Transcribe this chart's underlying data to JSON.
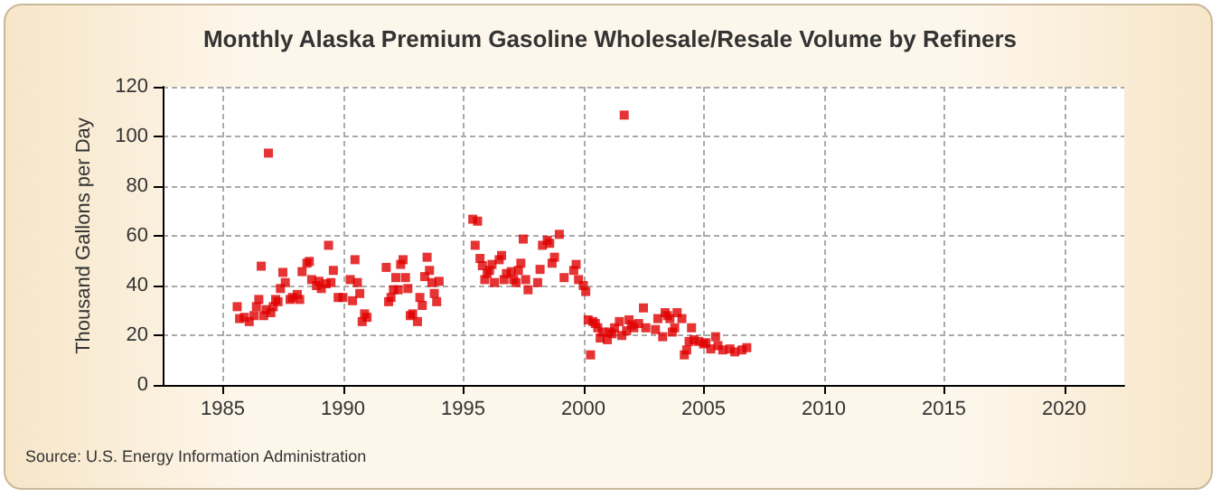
{
  "chart_data": {
    "type": "scatter",
    "title": "Monthly Alaska Premium Gasoline Wholesale/Resale Volume by Refiners",
    "ylabel": "Thousand Gallons per Day",
    "annotations": [
      "Source: U.S. Energy Information Administration"
    ],
    "x": [
      1985.6,
      1985.7,
      1985.9,
      1986.1,
      1986.3,
      1986.4,
      1986.5,
      1986.6,
      1986.7,
      1986.8,
      1986.9,
      1987.0,
      1987.1,
      1987.2,
      1987.3,
      1987.5,
      1987.4,
      1987.6,
      1987.8,
      1987.9,
      1988.1,
      1988.2,
      1988.3,
      1988.5,
      1988.6,
      1988.7,
      1988.9,
      1989.0,
      1989.1,
      1989.3,
      1989.4,
      1989.5,
      1989.6,
      1989.8,
      1990.0,
      1990.3,
      1990.4,
      1990.5,
      1990.6,
      1990.7,
      1990.8,
      1990.9,
      1991.0,
      1991.8,
      1991.9,
      1992.0,
      1992.1,
      1992.2,
      1992.3,
      1992.4,
      1992.5,
      1992.6,
      1992.7,
      1992.8,
      1992.9,
      1993.1,
      1993.2,
      1993.3,
      1993.4,
      1993.5,
      1993.6,
      1993.7,
      1993.8,
      1993.9,
      1994.0,
      1995.4,
      1995.5,
      1995.6,
      1995.7,
      1995.8,
      1995.9,
      1996.0,
      1996.1,
      1996.2,
      1996.3,
      1996.5,
      1996.6,
      1996.7,
      1996.8,
      1997.0,
      1997.1,
      1997.2,
      1997.3,
      1997.4,
      1997.5,
      1997.6,
      1997.7,
      1998.1,
      1998.2,
      1998.3,
      1998.5,
      1998.6,
      1998.7,
      1998.8,
      1999.0,
      1999.2,
      1999.6,
      1999.7,
      1999.8,
      2000.0,
      2000.1,
      2000.2,
      2000.3,
      2000.4,
      2000.5,
      2000.6,
      2000.7,
      2000.8,
      2001.0,
      2001.1,
      2001.2,
      2001.3,
      2001.5,
      2001.6,
      2001.7,
      2001.8,
      2001.9,
      2002.0,
      2002.1,
      2002.3,
      2002.5,
      2002.6,
      2003.0,
      2003.1,
      2003.3,
      2003.4,
      2003.5,
      2003.6,
      2003.7,
      2003.8,
      2003.9,
      2004.1,
      2004.2,
      2004.3,
      2004.4,
      2004.5,
      2004.6,
      2004.8,
      2005.0,
      2005.1,
      2005.3,
      2005.5,
      2005.6,
      2005.8,
      2006.1,
      2006.3,
      2006.6,
      2006.8
    ],
    "values": [
      31.5,
      26.7,
      27.2,
      25.5,
      27.9,
      31.5,
      34.4,
      47.8,
      27.9,
      30.3,
      93.3,
      29.1,
      31.5,
      34.4,
      33.5,
      45.3,
      38.8,
      41.2,
      34.4,
      35.2,
      36.4,
      34.4,
      45.6,
      49,
      49.7,
      42.4,
      40,
      41.7,
      38.8,
      40.7,
      56.2,
      41.2,
      46.1,
      35.2,
      35.2,
      42.4,
      33.9,
      50.4,
      41.2,
      36.8,
      25.5,
      28.6,
      27.2,
      47.3,
      33.5,
      35.2,
      38.3,
      43.2,
      38.3,
      48.5,
      50.4,
      43.2,
      38.8,
      27.9,
      28.6,
      25.5,
      35.2,
      32,
      43.6,
      51.4,
      46.1,
      41.2,
      36.8,
      33.5,
      41.7,
      66.7,
      56.2,
      65.9,
      50.9,
      48,
      42.4,
      44.8,
      46.1,
      48.5,
      41.2,
      50.4,
      52.1,
      42.4,
      44.8,
      45.6,
      42.4,
      41.2,
      46.1,
      49,
      58.7,
      42.4,
      38.3,
      41.2,
      46.5,
      56.2,
      58.2,
      57,
      49,
      51.4,
      60.6,
      43.2,
      46.1,
      48.5,
      42.4,
      40,
      37.6,
      26.2,
      12.1,
      25.5,
      24.7,
      23,
      18.9,
      21.3,
      18.2,
      21.3,
      20.6,
      23,
      25.5,
      19.9,
      108.6,
      21.8,
      26.2,
      24.2,
      23,
      24.7,
      31,
      23,
      22.3,
      26.7,
      19.4,
      29.1,
      27.9,
      26.7,
      21.3,
      23,
      29.1,
      26.7,
      12.1,
      14.1,
      17.5,
      23,
      18.2,
      17.5,
      16.5,
      17,
      14.5,
      19.4,
      15.8,
      14.1,
      14.5,
      13.3,
      14.1,
      15
    ],
    "color": "#e00000",
    "marker": "square",
    "grid": true,
    "xlim": [
      1982.5,
      2022.5
    ],
    "xticks": [
      1985,
      1990,
      1995,
      2000,
      2005,
      2010,
      2015,
      2020
    ],
    "ylim": [
      0,
      120
    ],
    "yticks": [
      0,
      20,
      40,
      60,
      80,
      100,
      120
    ]
  }
}
